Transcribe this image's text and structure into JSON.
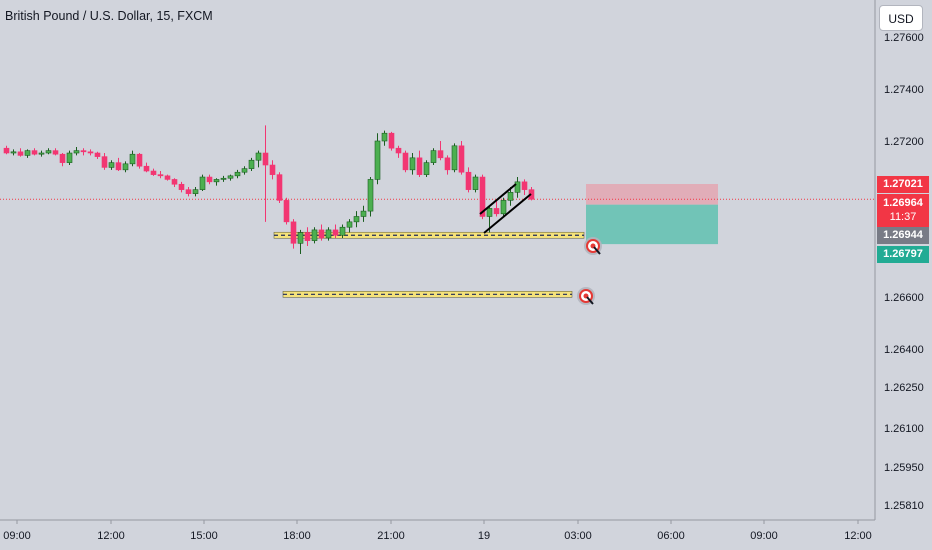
{
  "header": {
    "title": "British Pound / U.S. Dollar, 15, FXCM",
    "currency_label": "USD"
  },
  "price_tags": {
    "stop": {
      "value": "1.27021",
      "color": "#f23645"
    },
    "last": {
      "value": "1.26964",
      "countdown": "11:37",
      "color": "#f23645"
    },
    "entry": {
      "value": "1.26944",
      "color": "#787b86"
    },
    "target": {
      "value": "1.26797",
      "color": "#22ab94"
    }
  },
  "chart_data": {
    "type": "candlestick",
    "title": "British Pound / U.S. Dollar, 15, FXCM",
    "y_axis": {
      "ticks": [
        "1.27600",
        "1.27400",
        "1.27200",
        "1.26600",
        "1.26400",
        "1.26250",
        "1.26100",
        "1.25950",
        "1.25810"
      ],
      "position": "right"
    },
    "x_axis": {
      "ticks": [
        "09:00",
        "12:00",
        "15:00",
        "18:00",
        "21:00",
        "19",
        "03:00",
        "06:00",
        "09:00",
        "12:00"
      ]
    },
    "colors": {
      "up": "#26a69a",
      "down": "#ef5350",
      "background": "#d1d4dc",
      "zone_profit": "#66c2b2",
      "zone_loss": "#e4a6b1"
    },
    "candles": [
      [
        1.2717,
        1.2718,
        1.27145,
        1.2715
      ],
      [
        1.2715,
        1.27165,
        1.2714,
        1.27155
      ],
      [
        1.27155,
        1.2717,
        1.27135,
        1.2714
      ],
      [
        1.2714,
        1.27165,
        1.2713,
        1.2716
      ],
      [
        1.2716,
        1.2717,
        1.2714,
        1.27145
      ],
      [
        1.27145,
        1.2716,
        1.27135,
        1.2715
      ],
      [
        1.2715,
        1.2717,
        1.27145,
        1.2716
      ],
      [
        1.2716,
        1.2717,
        1.2714,
        1.27145
      ],
      [
        1.27145,
        1.2715,
        1.27095,
        1.2711
      ],
      [
        1.2711,
        1.2716,
        1.271,
        1.2715
      ],
      [
        1.2715,
        1.27175,
        1.2714,
        1.2716
      ],
      [
        1.2716,
        1.2717,
        1.2714,
        1.27155
      ],
      [
        1.27155,
        1.27165,
        1.2714,
        1.2715
      ],
      [
        1.2715,
        1.27155,
        1.27125,
        1.27135
      ],
      [
        1.27135,
        1.2715,
        1.2708,
        1.2709
      ],
      [
        1.2709,
        1.2712,
        1.2708,
        1.2711
      ],
      [
        1.2711,
        1.2713,
        1.27075,
        1.2708
      ],
      [
        1.2708,
        1.27115,
        1.2707,
        1.27105
      ],
      [
        1.27105,
        1.2716,
        1.27095,
        1.27145
      ],
      [
        1.27145,
        1.2715,
        1.27085,
        1.27095
      ],
      [
        1.27095,
        1.2711,
        1.2707,
        1.27075
      ],
      [
        1.27075,
        1.27085,
        1.27055,
        1.2706
      ],
      [
        1.2706,
        1.27075,
        1.27045,
        1.27055
      ],
      [
        1.27055,
        1.2706,
        1.27035,
        1.2704
      ],
      [
        1.2704,
        1.27045,
        1.2701,
        1.2702
      ],
      [
        1.2702,
        1.2703,
        1.2699,
        1.27
      ],
      [
        1.27,
        1.2701,
        1.26975,
        1.26985
      ],
      [
        1.26985,
        1.2701,
        1.26975,
        1.27
      ],
      [
        1.27,
        1.2706,
        1.26995,
        1.2705
      ],
      [
        1.2705,
        1.2706,
        1.2702,
        1.2703
      ],
      [
        1.2703,
        1.27045,
        1.27015,
        1.2704
      ],
      [
        1.2704,
        1.27055,
        1.2703,
        1.27045
      ],
      [
        1.27045,
        1.2706,
        1.27035,
        1.27055
      ],
      [
        1.27055,
        1.2708,
        1.27045,
        1.2707
      ],
      [
        1.2707,
        1.27095,
        1.2706,
        1.27085
      ],
      [
        1.27085,
        1.2713,
        1.27075,
        1.2712
      ],
      [
        1.2712,
        1.2716,
        1.2709,
        1.2715
      ],
      [
        1.2715,
        1.2726,
        1.2688,
        1.271
      ],
      [
        1.271,
        1.2712,
        1.2704,
        1.2706
      ],
      [
        1.2706,
        1.2707,
        1.2695,
        1.2696
      ],
      [
        1.2696,
        1.2697,
        1.2687,
        1.2688
      ],
      [
        1.2688,
        1.2689,
        1.2678,
        1.268
      ],
      [
        1.268,
        1.2685,
        1.2676,
        1.2684
      ],
      [
        1.2684,
        1.2686,
        1.2679,
        1.2681
      ],
      [
        1.2681,
        1.2686,
        1.268,
        1.2685
      ],
      [
        1.2685,
        1.2687,
        1.2681,
        1.2682
      ],
      [
        1.2682,
        1.2686,
        1.2681,
        1.2685
      ],
      [
        1.2685,
        1.2687,
        1.2682,
        1.2683
      ],
      [
        1.2683,
        1.2687,
        1.2682,
        1.2686
      ],
      [
        1.2686,
        1.2689,
        1.2684,
        1.2688
      ],
      [
        1.2688,
        1.2692,
        1.2686,
        1.269
      ],
      [
        1.269,
        1.2694,
        1.2688,
        1.2692
      ],
      [
        1.2692,
        1.2705,
        1.269,
        1.2704
      ],
      [
        1.2704,
        1.2723,
        1.2702,
        1.272
      ],
      [
        1.272,
        1.2724,
        1.2718,
        1.2723
      ],
      [
        1.2723,
        1.27235,
        1.2716,
        1.2717
      ],
      [
        1.2717,
        1.2718,
        1.2713,
        1.2715
      ],
      [
        1.2715,
        1.2716,
        1.2707,
        1.2708
      ],
      [
        1.2708,
        1.2715,
        1.2706,
        1.2713
      ],
      [
        1.2713,
        1.2716,
        1.2705,
        1.2706
      ],
      [
        1.2706,
        1.2712,
        1.2705,
        1.2711
      ],
      [
        1.2711,
        1.2717,
        1.271,
        1.2716
      ],
      [
        1.2716,
        1.272,
        1.2712,
        1.2713
      ],
      [
        1.2713,
        1.2714,
        1.2706,
        1.2708
      ],
      [
        1.2708,
        1.2719,
        1.2707,
        1.2718
      ],
      [
        1.2718,
        1.272,
        1.2706,
        1.2707
      ],
      [
        1.2707,
        1.2709,
        1.2699,
        1.27
      ],
      [
        1.27,
        1.2706,
        1.2699,
        1.2705
      ],
      [
        1.2705,
        1.2706,
        1.2689,
        1.269
      ],
      [
        1.269,
        1.2694,
        1.2684,
        1.2693
      ],
      [
        1.2693,
        1.2696,
        1.269,
        1.2691
      ],
      [
        1.2691,
        1.2697,
        1.269,
        1.2696
      ],
      [
        1.2696,
        1.2701,
        1.2694,
        1.2699
      ],
      [
        1.2699,
        1.2705,
        1.2697,
        1.2703
      ],
      [
        1.2703,
        1.2704,
        1.2698,
        1.27
      ],
      [
        1.27,
        1.2701,
        1.2696,
        1.26964
      ]
    ],
    "annotations": {
      "level_1": 1.2683,
      "level_2": 1.2661,
      "position_entry": 1.26944,
      "position_stop": 1.27021,
      "position_target": 1.26797,
      "price_line": 1.26964
    }
  }
}
